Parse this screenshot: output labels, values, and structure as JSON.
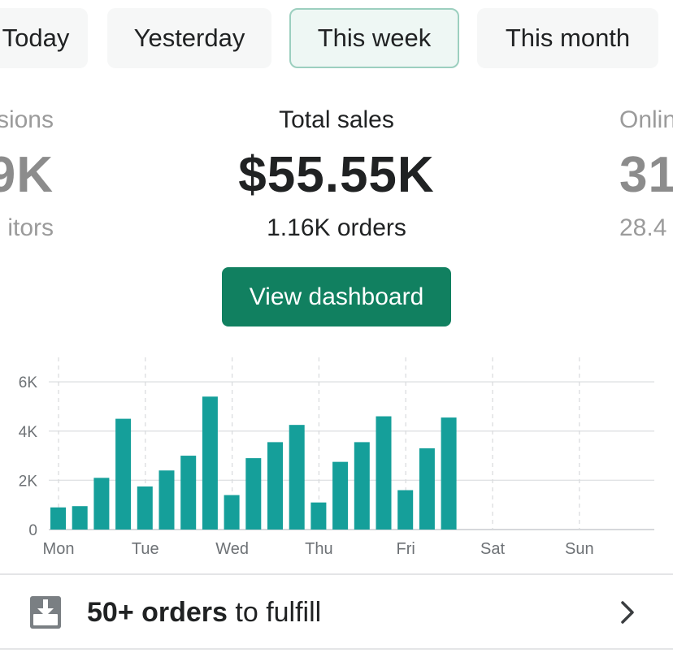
{
  "tabs": [
    {
      "label": "Today",
      "active": false
    },
    {
      "label": "Yesterday",
      "active": false
    },
    {
      "label": "This week",
      "active": true
    },
    {
      "label": "This month",
      "active": false
    }
  ],
  "metrics": {
    "left": {
      "label": "sions",
      "value": "9K",
      "sub": "itors"
    },
    "center": {
      "label": "Total sales",
      "value": "$55.55K",
      "sub": "1.16K orders"
    },
    "right": {
      "label": "Onlin",
      "value": "31",
      "sub": "28.4"
    }
  },
  "view_dashboard_label": "View dashboard",
  "colors": {
    "bar": "#159f9a",
    "button": "#118060",
    "grid": "#dcdcdc"
  },
  "chart_data": {
    "type": "bar",
    "x_tick_labels": [
      "Mon",
      "Tue",
      "Wed",
      "Thu",
      "Fri",
      "Sat",
      "Sun"
    ],
    "y_tick_labels": [
      "0",
      "2K",
      "4K",
      "6K"
    ],
    "ylim": [
      0,
      6400
    ],
    "values": [
      900,
      950,
      2100,
      4500,
      1750,
      2400,
      3000,
      5400,
      1400,
      2900,
      3550,
      4250,
      1100,
      2750,
      3550,
      4600,
      1600,
      3300,
      4550
    ],
    "grid": true
  },
  "fulfill": {
    "count": "50+ orders",
    "rest": " to fulfill",
    "icon": "download-tray-icon"
  }
}
